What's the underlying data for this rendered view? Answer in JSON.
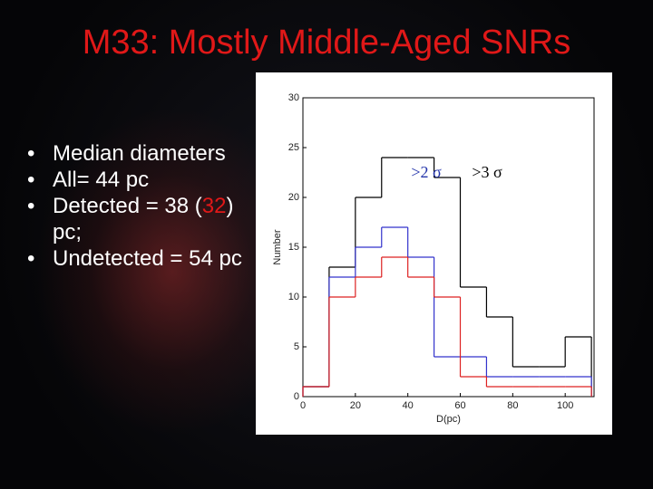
{
  "title": "M33: Mostly Middle-Aged SNRs",
  "bullets": [
    {
      "parts": [
        "Median diameters"
      ]
    },
    {
      "parts": [
        "All= 44 pc"
      ]
    },
    {
      "parts": [
        "Detected = 38 (",
        "32",
        ") pc;"
      ]
    },
    {
      "parts": [
        "Undetected = 54 pc"
      ]
    }
  ],
  "chart_data": {
    "type": "histogram",
    "xlabel": "D(pc)",
    "ylabel": "Number",
    "bins": [
      0,
      10,
      20,
      30,
      40,
      50,
      60,
      70,
      80,
      90,
      100,
      110
    ],
    "series": [
      {
        "color": "#000000",
        "values": [
          1,
          13,
          20,
          24,
          24,
          22,
          11,
          8,
          3,
          3,
          6
        ]
      },
      {
        "color": "#3333cc",
        "values": [
          1,
          12,
          15,
          17,
          14,
          4,
          4,
          2,
          2,
          2,
          2
        ]
      },
      {
        "color": "#dd2222",
        "values": [
          1,
          10,
          12,
          14,
          12,
          10,
          2,
          1,
          1,
          1,
          1
        ]
      }
    ],
    "annotations": [
      {
        "text": ">2 σ",
        "color": "#2233aa"
      },
      {
        "text": ">3 σ",
        "color": "#000000"
      }
    ],
    "xlim": [
      0,
      111
    ],
    "ylim": [
      0,
      30
    ],
    "xticks": [
      0,
      20,
      40,
      60,
      80,
      100
    ],
    "yticks": [
      0,
      5,
      10,
      15,
      20,
      25,
      30
    ]
  }
}
